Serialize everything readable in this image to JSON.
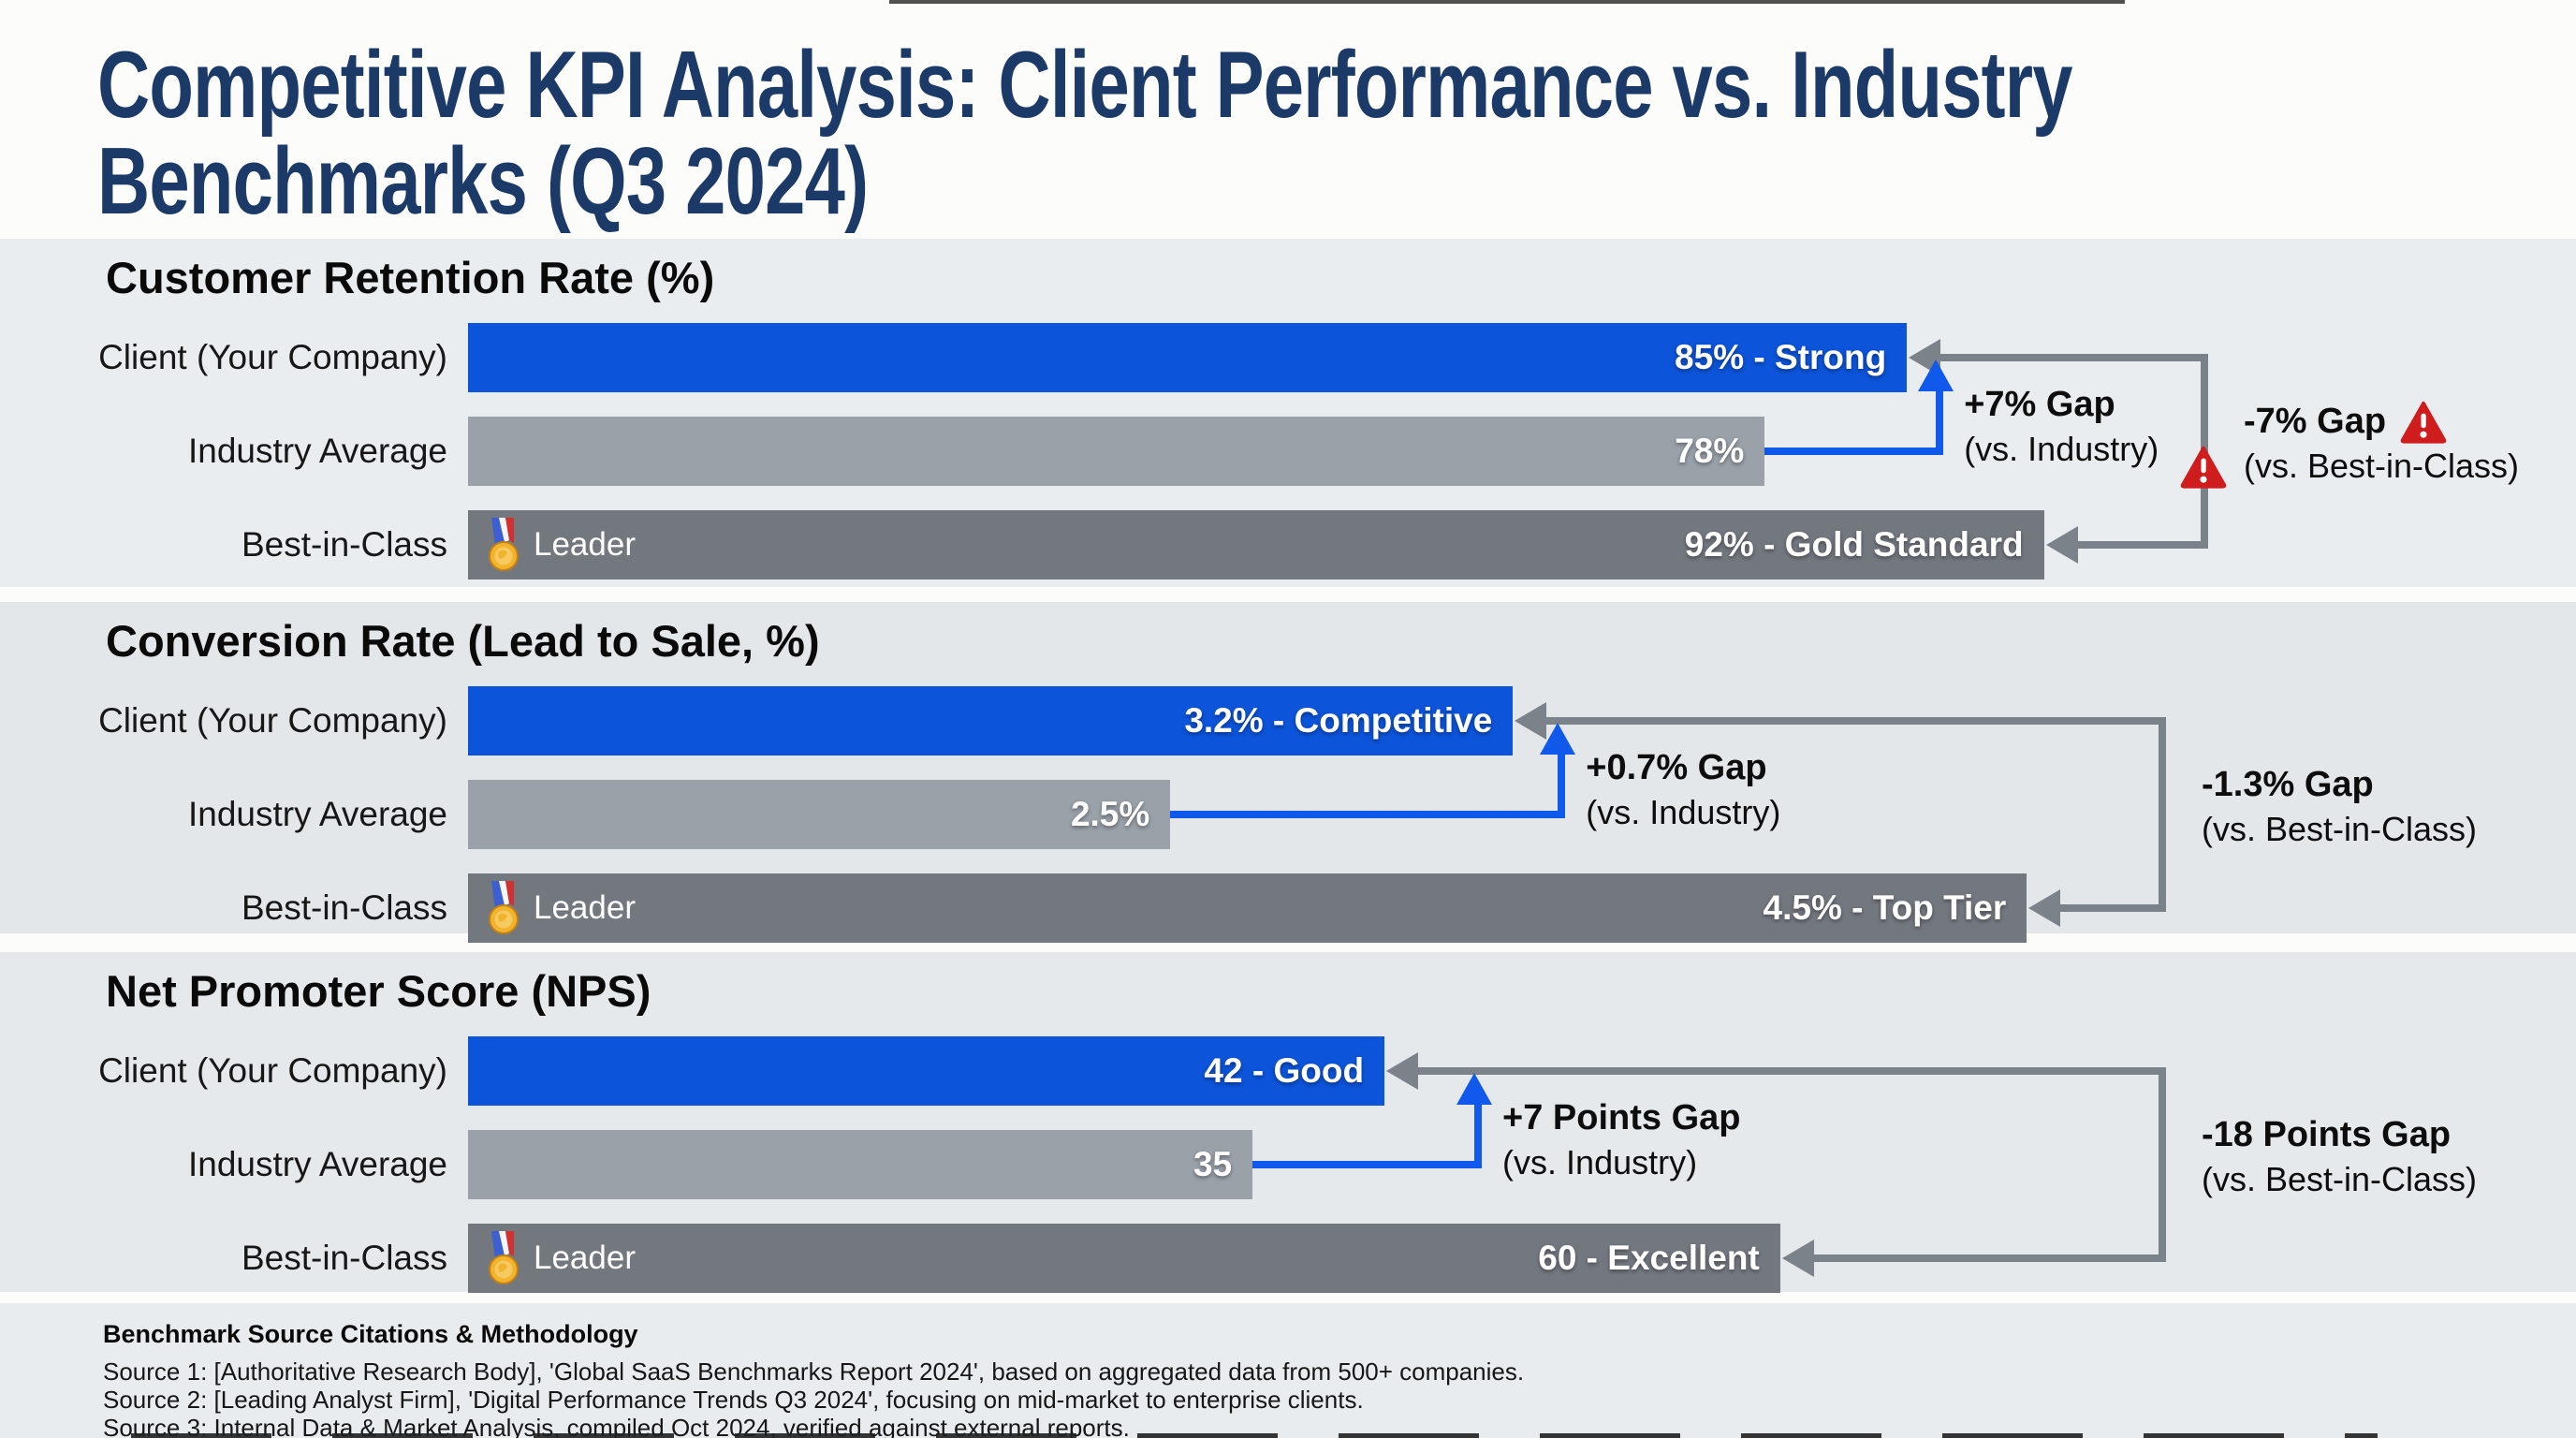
{
  "title": "Competitive KPI Analysis: Client Performance vs. Industry Benchmarks (Q3 2024)",
  "colors": {
    "title_navy": "#1c3a67",
    "client_blue": "#0c54da",
    "industry_gray": "#9aa1a9",
    "best_gray": "#73787f",
    "connector_gray": "#7c828a",
    "connector_blue": "#1159ea",
    "warning_red": "#cf1d1d"
  },
  "sections": [
    {
      "header": "Customer Retention Rate (%)",
      "rows": [
        {
          "label": "Client (Your Company)",
          "value_label": "85% - Strong",
          "badge": ""
        },
        {
          "label": "Industry Average",
          "value_label": "78%",
          "badge": ""
        },
        {
          "label": "Best-in-Class",
          "value_label": "92% - Gold Standard",
          "badge": "Leader"
        }
      ],
      "industry_gap": {
        "line1": "+7% Gap",
        "line2": "(vs. Industry)"
      },
      "best_gap": {
        "line1": "-7% Gap",
        "line2": "(vs. Best-in-Class)",
        "warning": true
      }
    },
    {
      "header": "Conversion Rate (Lead to Sale, %)",
      "rows": [
        {
          "label": "Client (Your Company)",
          "value_label": "3.2% - Competitive",
          "badge": ""
        },
        {
          "label": "Industry Average",
          "value_label": "2.5%",
          "badge": ""
        },
        {
          "label": "Best-in-Class",
          "value_label": "4.5% - Top Tier",
          "badge": "Leader"
        }
      ],
      "industry_gap": {
        "line1": "+0.7% Gap",
        "line2": "(vs. Industry)"
      },
      "best_gap": {
        "line1": "-1.3% Gap",
        "line2": "(vs. Best-in-Class)",
        "warning": false
      }
    },
    {
      "header": "Net Promoter Score (NPS)",
      "rows": [
        {
          "label": "Client (Your Company)",
          "value_label": "42 - Good",
          "badge": ""
        },
        {
          "label": "Industry Average",
          "value_label": "35",
          "badge": ""
        },
        {
          "label": "Best-in-Class",
          "value_label": "60 - Excellent",
          "badge": "Leader"
        }
      ],
      "industry_gap": {
        "line1": "+7 Points Gap",
        "line2": "(vs. Industry)"
      },
      "best_gap": {
        "line1": "-18 Points Gap",
        "line2": "(vs. Best-in-Class)",
        "warning": false
      }
    }
  ],
  "footer": {
    "heading": "Benchmark Source Citations & Methodology",
    "sources": [
      "Source 1: [Authoritative Research Body], 'Global SaaS Benchmarks Report 2024', based on aggregated data from 500+ companies.",
      "Source 2: [Leading Analyst Firm], 'Digital Performance Trends Q3 2024', focusing on mid-market to enterprise clients.",
      "Source 3: Internal Data & Market Analysis, compiled Oct 2024, verified against external reports."
    ]
  },
  "chart_data": [
    {
      "type": "bar",
      "orientation": "horizontal",
      "title": "Customer Retention Rate (%)",
      "categories": [
        "Client (Your Company)",
        "Industry Average",
        "Best-in-Class"
      ],
      "values": [
        85,
        78,
        92
      ],
      "value_labels": [
        "85% - Strong",
        "78%",
        "92% - Gold Standard"
      ],
      "annotations": {
        "vs_industry": "+7% Gap (vs. Industry)",
        "vs_best_in_class": "-7% Gap (vs. Best-in-Class)",
        "best_badge": "Leader"
      },
      "xlim": [
        0,
        100
      ],
      "grid": false,
      "legend": false
    },
    {
      "type": "bar",
      "orientation": "horizontal",
      "title": "Conversion Rate (Lead to Sale, %)",
      "categories": [
        "Client (Your Company)",
        "Industry Average",
        "Best-in-Class"
      ],
      "values": [
        3.2,
        2.5,
        4.5
      ],
      "value_labels": [
        "3.2% - Competitive",
        "2.5%",
        "4.5% - Top Tier"
      ],
      "annotations": {
        "vs_industry": "+0.7% Gap (vs. Industry)",
        "vs_best_in_class": "-1.3% Gap (vs. Best-in-Class)",
        "best_badge": "Leader"
      },
      "xlim": [
        0,
        5
      ],
      "grid": false,
      "legend": false
    },
    {
      "type": "bar",
      "orientation": "horizontal",
      "title": "Net Promoter Score (NPS)",
      "categories": [
        "Client (Your Company)",
        "Industry Average",
        "Best-in-Class"
      ],
      "values": [
        42,
        35,
        60
      ],
      "value_labels": [
        "42 - Good",
        "35",
        "60 - Excellent"
      ],
      "annotations": {
        "vs_industry": "+7 Points Gap (vs. Industry)",
        "vs_best_in_class": "-18 Points Gap (vs. Best-in-Class)",
        "best_badge": "Leader"
      },
      "xlim": [
        0,
        78
      ],
      "grid": false,
      "legend": false
    }
  ]
}
